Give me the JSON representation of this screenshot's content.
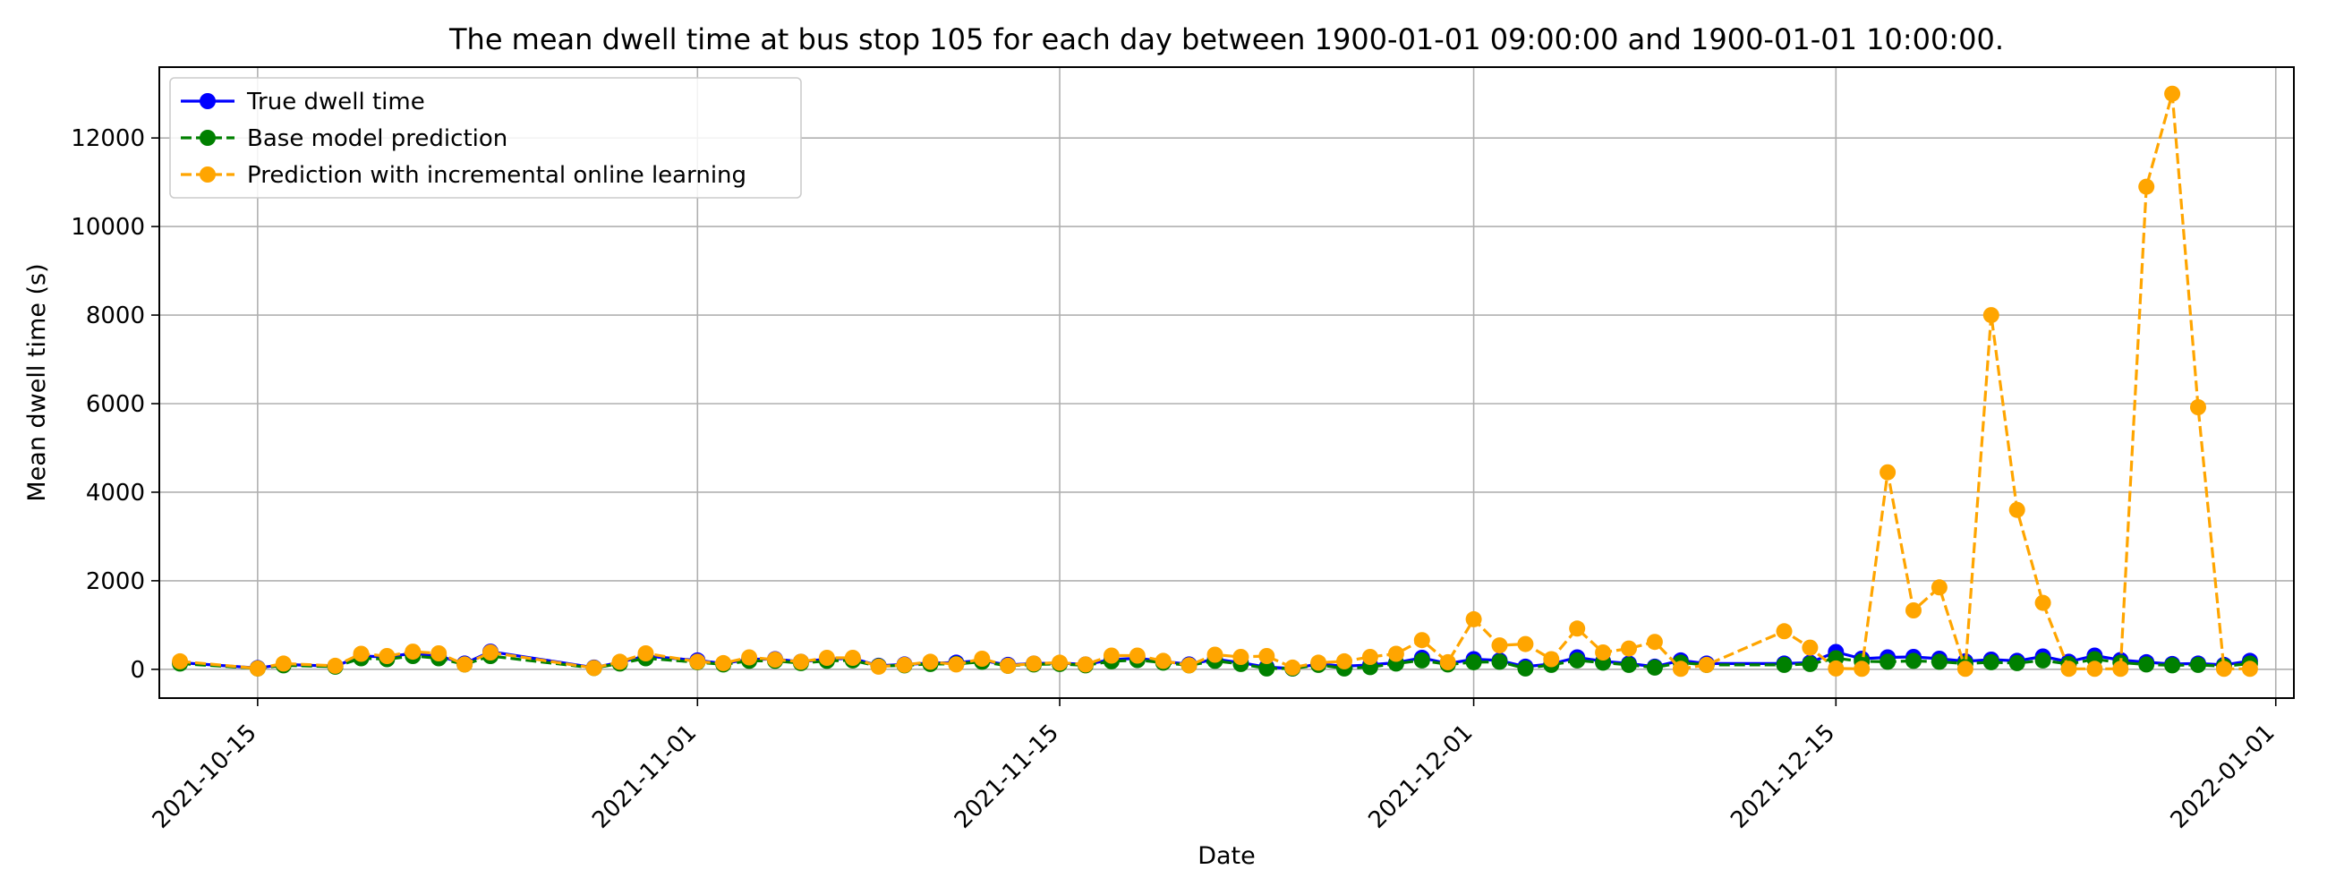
{
  "chart_data": {
    "type": "line",
    "title": "The mean dwell time at bus stop 105 for each day between 1900-01-01 09:00:00 and 1900-01-01 10:00:00.",
    "xlabel": "Date",
    "ylabel": "Mean dwell time (s)",
    "x_tick_labels": [
      "2021-10-15",
      "2021-11-01",
      "2021-11-15",
      "2021-12-01",
      "2021-12-15",
      "2022-01-01"
    ],
    "y_tick_labels": [
      "0",
      "2000",
      "4000",
      "6000",
      "8000",
      "10000",
      "12000"
    ],
    "xlim": [
      "2021-10-12",
      "2022-01-01"
    ],
    "ylim": [
      -650,
      13600
    ],
    "grid": true,
    "legend_position": "upper-left",
    "series": [
      {
        "name": "True dwell time",
        "color": "#0000ff",
        "line_style": "solid",
        "marker": "circle",
        "points": [
          [
            "2021-10-12",
            150
          ],
          [
            "2021-10-15",
            30
          ],
          [
            "2021-10-16",
            110
          ],
          [
            "2021-10-18",
            70
          ],
          [
            "2021-10-19",
            300
          ],
          [
            "2021-10-20",
            280
          ],
          [
            "2021-10-21",
            360
          ],
          [
            "2021-10-22",
            300
          ],
          [
            "2021-10-23",
            130
          ],
          [
            "2021-10-24",
            400
          ],
          [
            "2021-10-28",
            40
          ],
          [
            "2021-10-29",
            160
          ],
          [
            "2021-10-30",
            300
          ],
          [
            "2021-11-01",
            200
          ],
          [
            "2021-11-02",
            130
          ],
          [
            "2021-11-03",
            230
          ],
          [
            "2021-11-04",
            230
          ],
          [
            "2021-11-05",
            170
          ],
          [
            "2021-11-06",
            230
          ],
          [
            "2021-11-07",
            250
          ],
          [
            "2021-11-08",
            80
          ],
          [
            "2021-11-09",
            110
          ],
          [
            "2021-11-10",
            140
          ],
          [
            "2021-11-11",
            150
          ],
          [
            "2021-11-12",
            200
          ],
          [
            "2021-11-13",
            100
          ],
          [
            "2021-11-14",
            130
          ],
          [
            "2021-11-15",
            140
          ],
          [
            "2021-11-16",
            110
          ],
          [
            "2021-11-17",
            220
          ],
          [
            "2021-11-18",
            250
          ],
          [
            "2021-11-19",
            180
          ],
          [
            "2021-11-20",
            110
          ],
          [
            "2021-11-21",
            230
          ],
          [
            "2021-11-22",
            150
          ],
          [
            "2021-11-23",
            50
          ],
          [
            "2021-11-24",
            20
          ],
          [
            "2021-11-25",
            120
          ],
          [
            "2021-11-26",
            70
          ],
          [
            "2021-11-27",
            100
          ],
          [
            "2021-11-28",
            150
          ],
          [
            "2021-11-29",
            260
          ],
          [
            "2021-11-30",
            130
          ],
          [
            "2021-12-01",
            230
          ],
          [
            "2021-12-02",
            200
          ],
          [
            "2021-12-03",
            60
          ],
          [
            "2021-12-04",
            120
          ],
          [
            "2021-12-05",
            270
          ],
          [
            "2021-12-06",
            180
          ],
          [
            "2021-12-07",
            130
          ],
          [
            "2021-12-08",
            60
          ],
          [
            "2021-12-09",
            200
          ],
          [
            "2021-12-10",
            130
          ],
          [
            "2021-12-13",
            130
          ],
          [
            "2021-12-14",
            150
          ],
          [
            "2021-12-15",
            390
          ],
          [
            "2021-12-16",
            240
          ],
          [
            "2021-12-17",
            270
          ],
          [
            "2021-12-18",
            280
          ],
          [
            "2021-12-19",
            240
          ],
          [
            "2021-12-20",
            180
          ],
          [
            "2021-12-21",
            220
          ],
          [
            "2021-12-22",
            190
          ],
          [
            "2021-12-23",
            290
          ],
          [
            "2021-12-24",
            170
          ],
          [
            "2021-12-25",
            310
          ],
          [
            "2021-12-26",
            210
          ],
          [
            "2021-12-27",
            160
          ],
          [
            "2021-12-28",
            120
          ],
          [
            "2021-12-29",
            130
          ],
          [
            "2021-12-30",
            100
          ],
          [
            "2021-12-31",
            190
          ]
        ]
      },
      {
        "name": "Base model prediction",
        "color": "#008000",
        "line_style": "dashed",
        "marker": "circle",
        "points": [
          [
            "2021-10-12",
            130
          ],
          [
            "2021-10-15",
            20
          ],
          [
            "2021-10-16",
            90
          ],
          [
            "2021-10-18",
            60
          ],
          [
            "2021-10-19",
            250
          ],
          [
            "2021-10-20",
            230
          ],
          [
            "2021-10-21",
            300
          ],
          [
            "2021-10-22",
            250
          ],
          [
            "2021-10-23",
            110
          ],
          [
            "2021-10-24",
            300
          ],
          [
            "2021-10-28",
            30
          ],
          [
            "2021-10-29",
            130
          ],
          [
            "2021-10-30",
            250
          ],
          [
            "2021-11-01",
            160
          ],
          [
            "2021-11-02",
            110
          ],
          [
            "2021-11-03",
            190
          ],
          [
            "2021-11-04",
            190
          ],
          [
            "2021-11-05",
            140
          ],
          [
            "2021-11-06",
            190
          ],
          [
            "2021-11-07",
            200
          ],
          [
            "2021-11-08",
            70
          ],
          [
            "2021-11-09",
            90
          ],
          [
            "2021-11-10",
            120
          ],
          [
            "2021-11-11",
            120
          ],
          [
            "2021-11-12",
            170
          ],
          [
            "2021-11-13",
            80
          ],
          [
            "2021-11-14",
            110
          ],
          [
            "2021-11-15",
            120
          ],
          [
            "2021-11-16",
            90
          ],
          [
            "2021-11-17",
            180
          ],
          [
            "2021-11-18",
            210
          ],
          [
            "2021-11-19",
            150
          ],
          [
            "2021-11-20",
            90
          ],
          [
            "2021-11-21",
            190
          ],
          [
            "2021-11-22",
            120
          ],
          [
            "2021-11-23",
            20
          ],
          [
            "2021-11-24",
            20
          ],
          [
            "2021-11-25",
            100
          ],
          [
            "2021-11-26",
            20
          ],
          [
            "2021-11-27",
            50
          ],
          [
            "2021-11-28",
            130
          ],
          [
            "2021-11-29",
            200
          ],
          [
            "2021-11-30",
            110
          ],
          [
            "2021-12-01",
            160
          ],
          [
            "2021-12-02",
            170
          ],
          [
            "2021-12-03",
            20
          ],
          [
            "2021-12-04",
            100
          ],
          [
            "2021-12-05",
            200
          ],
          [
            "2021-12-06",
            150
          ],
          [
            "2021-12-07",
            100
          ],
          [
            "2021-12-08",
            40
          ],
          [
            "2021-12-09",
            150
          ],
          [
            "2021-12-10",
            100
          ],
          [
            "2021-12-13",
            100
          ],
          [
            "2021-12-14",
            120
          ],
          [
            "2021-12-15",
            250
          ],
          [
            "2021-12-16",
            180
          ],
          [
            "2021-12-17",
            170
          ],
          [
            "2021-12-18",
            190
          ],
          [
            "2021-12-19",
            170
          ],
          [
            "2021-12-20",
            130
          ],
          [
            "2021-12-21",
            160
          ],
          [
            "2021-12-22",
            140
          ],
          [
            "2021-12-23",
            200
          ],
          [
            "2021-12-24",
            120
          ],
          [
            "2021-12-25",
            230
          ],
          [
            "2021-12-26",
            150
          ],
          [
            "2021-12-27",
            110
          ],
          [
            "2021-12-28",
            90
          ],
          [
            "2021-12-29",
            100
          ],
          [
            "2021-12-30",
            70
          ],
          [
            "2021-12-31",
            130
          ]
        ]
      },
      {
        "name": "Prediction with incremental online learning",
        "color": "#ffa500",
        "line_style": "dashed",
        "marker": "circle",
        "points": [
          [
            "2021-10-12",
            180
          ],
          [
            "2021-10-15",
            20
          ],
          [
            "2021-10-16",
            130
          ],
          [
            "2021-10-18",
            80
          ],
          [
            "2021-10-19",
            350
          ],
          [
            "2021-10-20",
            300
          ],
          [
            "2021-10-21",
            400
          ],
          [
            "2021-10-22",
            360
          ],
          [
            "2021-10-23",
            110
          ],
          [
            "2021-10-24",
            380
          ],
          [
            "2021-10-28",
            30
          ],
          [
            "2021-10-29",
            170
          ],
          [
            "2021-10-30",
            360
          ],
          [
            "2021-11-01",
            170
          ],
          [
            "2021-11-02",
            140
          ],
          [
            "2021-11-03",
            270
          ],
          [
            "2021-11-04",
            220
          ],
          [
            "2021-11-05",
            170
          ],
          [
            "2021-11-06",
            260
          ],
          [
            "2021-11-07",
            260
          ],
          [
            "2021-11-08",
            60
          ],
          [
            "2021-11-09",
            100
          ],
          [
            "2021-11-10",
            170
          ],
          [
            "2021-11-11",
            110
          ],
          [
            "2021-11-12",
            240
          ],
          [
            "2021-11-13",
            80
          ],
          [
            "2021-11-14",
            130
          ],
          [
            "2021-11-15",
            150
          ],
          [
            "2021-11-16",
            110
          ],
          [
            "2021-11-17",
            310
          ],
          [
            "2021-11-18",
            310
          ],
          [
            "2021-11-19",
            190
          ],
          [
            "2021-11-20",
            90
          ],
          [
            "2021-11-21",
            330
          ],
          [
            "2021-11-22",
            280
          ],
          [
            "2021-11-23",
            300
          ],
          [
            "2021-11-24",
            40
          ],
          [
            "2021-11-25",
            150
          ],
          [
            "2021-11-26",
            180
          ],
          [
            "2021-11-27",
            280
          ],
          [
            "2021-11-28",
            350
          ],
          [
            "2021-11-29",
            660
          ],
          [
            "2021-11-30",
            160
          ],
          [
            "2021-12-01",
            1130
          ],
          [
            "2021-12-02",
            540
          ],
          [
            "2021-12-03",
            570
          ],
          [
            "2021-12-04",
            230
          ],
          [
            "2021-12-05",
            920
          ],
          [
            "2021-12-06",
            380
          ],
          [
            "2021-12-07",
            470
          ],
          [
            "2021-12-08",
            620
          ],
          [
            "2021-12-09",
            10
          ],
          [
            "2021-12-10",
            100
          ],
          [
            "2021-12-13",
            860
          ],
          [
            "2021-12-14",
            490
          ],
          [
            "2021-12-15",
            20
          ],
          [
            "2021-12-16",
            10
          ],
          [
            "2021-12-17",
            4450
          ],
          [
            "2021-12-18",
            1330
          ],
          [
            "2021-12-19",
            1850
          ],
          [
            "2021-12-20",
            10
          ],
          [
            "2021-12-21",
            8000
          ],
          [
            "2021-12-22",
            3600
          ],
          [
            "2021-12-23",
            1500
          ],
          [
            "2021-12-24",
            10
          ],
          [
            "2021-12-25",
            10
          ],
          [
            "2021-12-26",
            10
          ],
          [
            "2021-12-27",
            10900
          ],
          [
            "2021-12-28",
            13000
          ],
          [
            "2021-12-29",
            5920
          ],
          [
            "2021-12-30",
            10
          ],
          [
            "2021-12-31",
            10
          ]
        ]
      }
    ]
  }
}
